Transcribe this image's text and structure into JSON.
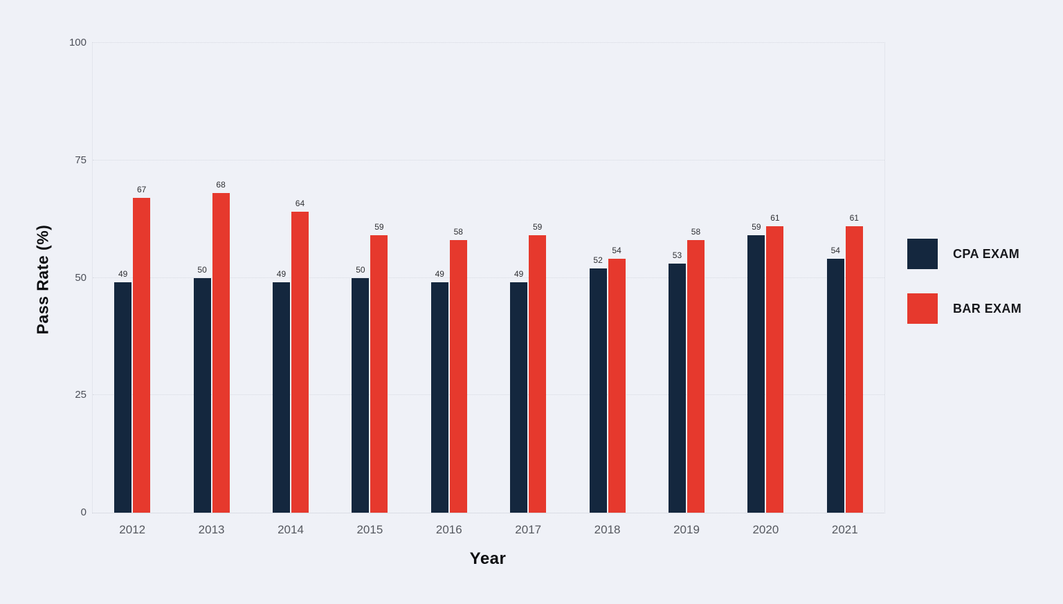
{
  "chart_data": {
    "type": "bar",
    "categories": [
      "2012",
      "2013",
      "2014",
      "2015",
      "2016",
      "2017",
      "2018",
      "2019",
      "2020",
      "2021"
    ],
    "series": [
      {
        "name": "CPA EXAM",
        "color": "#14273e",
        "values": [
          49,
          50,
          49,
          50,
          49,
          49,
          52,
          53,
          59,
          54
        ]
      },
      {
        "name": "BAR EXAM",
        "color": "#e6392d",
        "values": [
          67,
          68,
          64,
          59,
          58,
          59,
          54,
          58,
          61,
          61
        ]
      }
    ],
    "title": "",
    "xlabel": "Year",
    "ylabel": "Pass Rate (%)",
    "ylim": [
      0,
      100
    ],
    "yticks": [
      0,
      25,
      50,
      75,
      100
    ],
    "grid": "horizontal dotted",
    "bar_value_labels": true,
    "legend_position": "right"
  },
  "colors": {
    "background": "#eff1f7",
    "gridline": "#d6d9e1",
    "tick_label": "#55585f",
    "axis_title": "#0c0d10",
    "bar_value_label": "#2e2f33"
  }
}
